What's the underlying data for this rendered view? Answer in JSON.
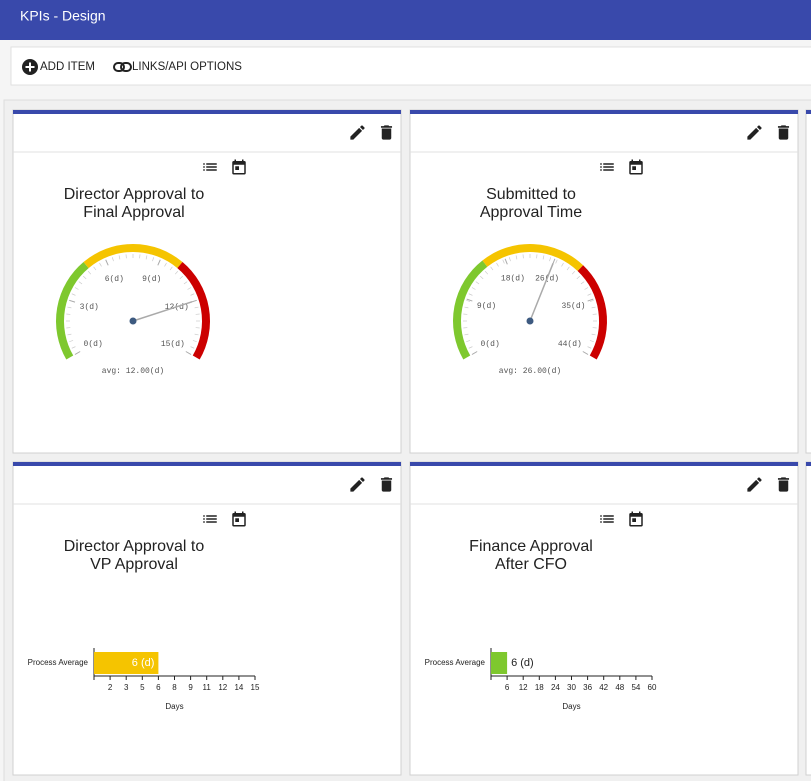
{
  "header": {
    "title": "KPIs - Design"
  },
  "toolbar": {
    "add_item": "ADD ITEM",
    "links": "LINKS/API OPTIONS"
  },
  "widgets": [
    {
      "type": "gauge",
      "title": [
        "Director Approval to",
        "Final Approval"
      ],
      "range": [
        0,
        15
      ],
      "ticks": [
        {
          "value": 0,
          "label": "0(d)"
        },
        {
          "value": 3,
          "label": "3(d)"
        },
        {
          "value": 6,
          "label": "6(d)"
        },
        {
          "value": 9,
          "label": "9(d)"
        },
        {
          "value": 12,
          "label": "12(d)"
        },
        {
          "value": 15,
          "label": "15(d)"
        }
      ],
      "bands": [
        {
          "from": 0,
          "to": 5,
          "color": "#7ec82e"
        },
        {
          "from": 5,
          "to": 10,
          "color": "#f5c400"
        },
        {
          "from": 10,
          "to": 15,
          "color": "#cc0000"
        }
      ],
      "value": 12,
      "value_label": "avg: 12.00(d)"
    },
    {
      "type": "gauge",
      "title": [
        "Submitted to",
        "Approval Time"
      ],
      "range": [
        0,
        44
      ],
      "ticks": [
        {
          "value": 0,
          "label": "0(d)"
        },
        {
          "value": 9,
          "label": "9(d)"
        },
        {
          "value": 18,
          "label": "18(d)"
        },
        {
          "value": 26,
          "label": "26(d)"
        },
        {
          "value": 35,
          "label": "35(d)"
        },
        {
          "value": 44,
          "label": "44(d)"
        }
      ],
      "bands": [
        {
          "from": 0,
          "to": 15,
          "color": "#7ec82e"
        },
        {
          "from": 15,
          "to": 30,
          "color": "#f5c400"
        },
        {
          "from": 30,
          "to": 44,
          "color": "#cc0000"
        }
      ],
      "value": 26,
      "value_label": "avg: 26.00(d)"
    },
    {
      "type": "bar",
      "title": [
        "Director Approval to",
        "VP Approval"
      ],
      "categories": [
        "Process Average"
      ],
      "values": [
        6
      ],
      "value_labels": [
        "6 (d)"
      ],
      "value_label_position": "inside",
      "color": "#f5c400",
      "xlim": [
        0,
        15
      ],
      "xticks": [
        {
          "value": 1.5,
          "label": "2"
        },
        3,
        {
          "value": 4.5,
          "label": "5"
        },
        6,
        {
          "value": 7.5,
          "label": "8"
        },
        9,
        {
          "value": 10.5,
          "label": "11"
        },
        12,
        {
          "value": 13.5,
          "label": "14"
        },
        15
      ],
      "xlabel": "Days"
    },
    {
      "type": "bar",
      "title": [
        "Finance Approval",
        "After CFO"
      ],
      "categories": [
        "Process Average"
      ],
      "values": [
        6
      ],
      "value_labels": [
        "6 (d)"
      ],
      "value_label_position": "outside",
      "color": "#7ec82e",
      "xlim": [
        0,
        60
      ],
      "xticks": [
        6,
        12,
        18,
        24,
        30,
        36,
        42,
        48,
        54,
        60
      ],
      "xlabel": "Days"
    }
  ]
}
